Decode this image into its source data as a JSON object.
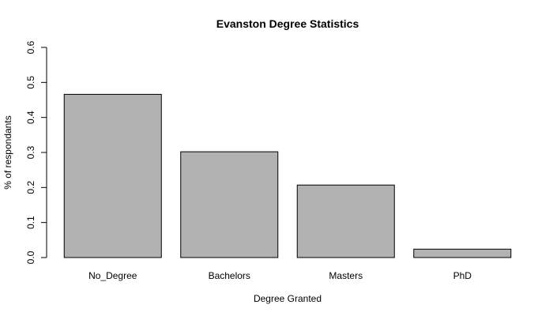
{
  "chart_data": {
    "type": "bar",
    "title": "Evanston Degree Statistics",
    "xlabel": "Degree Granted",
    "ylabel": "% of respondants",
    "categories": [
      "No_Degree",
      "Bachelors",
      "Masters",
      "PhD"
    ],
    "values": [
      0.466,
      0.302,
      0.207,
      0.024
    ],
    "ylim": [
      0,
      0.6
    ],
    "yticks": [
      "0.0",
      "0.1",
      "0.2",
      "0.3",
      "0.4",
      "0.5",
      "0.6"
    ],
    "grid": false,
    "bar_color": "#b2b2b2",
    "bar_border_color": "#000000"
  }
}
